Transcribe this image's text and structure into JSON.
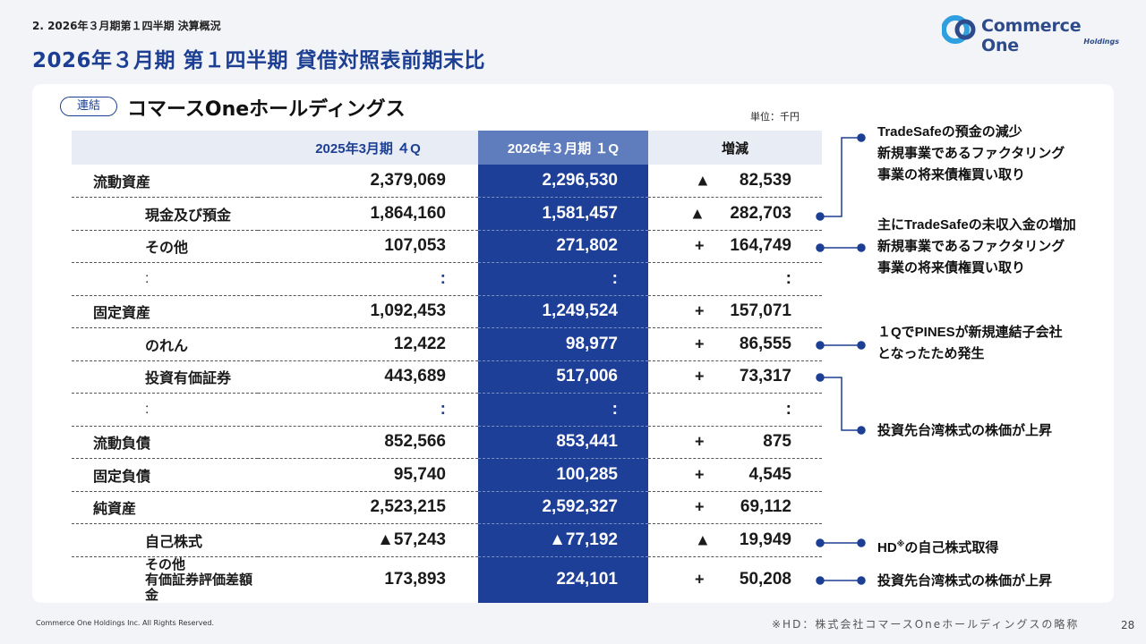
{
  "header": {
    "section": "2. 2026年３月期第１四半期 決算概況",
    "title": "2026年３月期 第１四半期 貸借対照表前期末比",
    "logo_name": "Commerce One",
    "logo_sub": "Holdings",
    "logo_icon": "commerce-one-logo-mark",
    "accent_color": "#1c3f94"
  },
  "card": {
    "badge": "連結",
    "company": "コマースOneホールディングス",
    "unit": "単位：千円"
  },
  "table": {
    "columns": [
      "",
      "2025年3月期 ４Q",
      "2026年３月期 １Q",
      "増減"
    ],
    "rows": [
      {
        "label": "流動資産",
        "prev": "2,379,069",
        "cur": "2,296,530",
        "sign": "▲",
        "diff": "82,539"
      },
      {
        "label": "現金及び預金",
        "prev": "1,864,160",
        "cur": "1,581,457",
        "sign": "▲",
        "diff": "282,703"
      },
      {
        "label": "その他",
        "prev": "107,053",
        "cur": "271,802",
        "sign": "+",
        "diff": "164,749"
      },
      {
        "label": ":",
        "prev": ":",
        "cur": ":",
        "sign": "",
        "diff": ":"
      },
      {
        "label": "固定資産",
        "prev": "1,092,453",
        "cur": "1,249,524",
        "sign": "+",
        "diff": "157,071"
      },
      {
        "label": "のれん",
        "prev": "12,422",
        "cur": "98,977",
        "sign": "+",
        "diff": "86,555"
      },
      {
        "label": "投資有価証券",
        "prev": "443,689",
        "cur": "517,006",
        "sign": "+",
        "diff": "73,317"
      },
      {
        "label": ":",
        "prev": ":",
        "cur": ":",
        "sign": "",
        "diff": ":"
      },
      {
        "label": "流動負債",
        "prev": "852,566",
        "cur": "853,441",
        "sign": "+",
        "diff": "875"
      },
      {
        "label": "固定負債",
        "prev": "95,740",
        "cur": "100,285",
        "sign": "+",
        "diff": "4,545"
      },
      {
        "label": "純資産",
        "prev": "2,523,215",
        "cur": "2,592,327",
        "sign": "+",
        "diff": "69,112"
      },
      {
        "label": "自己株式",
        "prev": "▲57,243",
        "cur": "▲77,192",
        "sign": "▲",
        "diff": "19,949"
      },
      {
        "label": "その他有価証券評価差額金",
        "label_line1": "その他",
        "label_line2": "有価証券評価差額金",
        "prev": "173,893",
        "cur": "224,101",
        "sign": "+",
        "diff": "50,208"
      }
    ]
  },
  "notes": {
    "n1": [
      "TradeSafeの預金の減少",
      "新規事業であるファクタリング",
      "事業の将来債権買い取り"
    ],
    "n2": [
      "主にTradeSafeの未収入金の増加",
      "新規事業であるファクタリング",
      "事業の将来債権買い取り"
    ],
    "n3": [
      "１QでPINESが新規連結子会社",
      "となったため発生"
    ],
    "n4": "投資先台湾株式の株価が上昇",
    "n5_prefix": "HD",
    "n5_mark": "※",
    "n5_suffix": "の自己株式取得",
    "n6": "投資先台湾株式の株価が上昇"
  },
  "footer": {
    "copyright": "Commerce One Holdings Inc. All Rights Reserved.",
    "note": "※HD：株式会社コマースOneホールディングスの略称",
    "page": "28"
  }
}
